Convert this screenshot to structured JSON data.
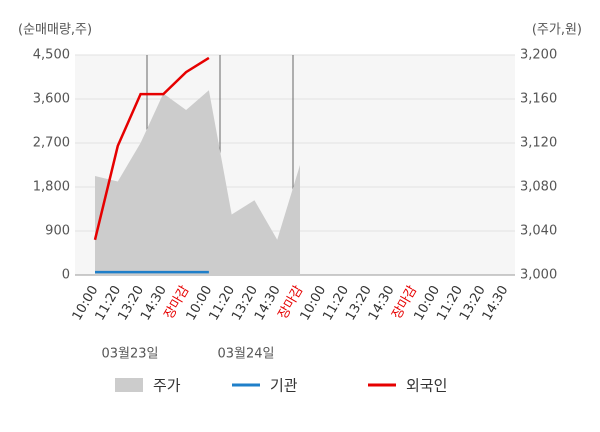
{
  "chart_data": {
    "type": "line",
    "ylabel": "(순매매량,주)",
    "y2label": "(주가,원)",
    "categories": [
      "10:00",
      "11:20",
      "13:20",
      "14:30",
      "장마감",
      "10:00",
      "11:20",
      "13:20",
      "14:30",
      "장마감",
      "10:00",
      "11:20",
      "13:20",
      "14:30",
      "장마감",
      "10:00",
      "11:20",
      "13:20",
      "14:30"
    ],
    "category_colors": [
      "#333",
      "#333",
      "#333",
      "#333",
      "#e60000",
      "#333",
      "#333",
      "#333",
      "#333",
      "#e60000",
      "#333",
      "#333",
      "#333",
      "#333",
      "#e60000",
      "#333",
      "#333",
      "#333",
      "#333"
    ],
    "day_labels": [
      "03월23일",
      "03월24일"
    ],
    "series": [
      {
        "name": "주가",
        "color": "#cccccc",
        "style": "area",
        "axis": "y2",
        "values": [
          3090,
          3085,
          3120,
          3165,
          3150,
          3168,
          3055,
          3068,
          3032,
          3100,
          null,
          null,
          null,
          null,
          null,
          null,
          null,
          null,
          null
        ]
      },
      {
        "name": "기관",
        "color": "#1f7fc9",
        "style": "line",
        "values": [
          60,
          60,
          60,
          60,
          60,
          60,
          null,
          null,
          null,
          null,
          null,
          null,
          null,
          null,
          null,
          null,
          null,
          null,
          null
        ]
      },
      {
        "name": "외국인",
        "color": "#e60000",
        "style": "line",
        "values": [
          720,
          2640,
          3700,
          3700,
          4150,
          4440,
          null,
          null,
          null,
          null,
          null,
          null,
          null,
          null,
          null,
          null,
          null,
          null,
          null
        ]
      }
    ],
    "ylim": [
      0,
      4500
    ],
    "yticks": [
      0,
      900,
      {
        "value": 1800,
        "label": "1,800"
      },
      {
        "value": 2700,
        "label": "2,700"
      },
      {
        "value": 3600,
        "label": "3,600"
      },
      {
        "value": 4500,
        "label": "4,500"
      }
    ],
    "y2lim": [
      3000,
      3200
    ],
    "y2ticks": [
      {
        "value": 3000,
        "label": "3,000"
      },
      {
        "value": 3040,
        "label": "3,040"
      },
      {
        "value": 3080,
        "label": "3,080"
      },
      {
        "value": 3120,
        "label": "3,120"
      },
      {
        "value": 3160,
        "label": "3,160"
      },
      {
        "value": 3200,
        "label": "3,200"
      }
    ],
    "grid": true
  }
}
